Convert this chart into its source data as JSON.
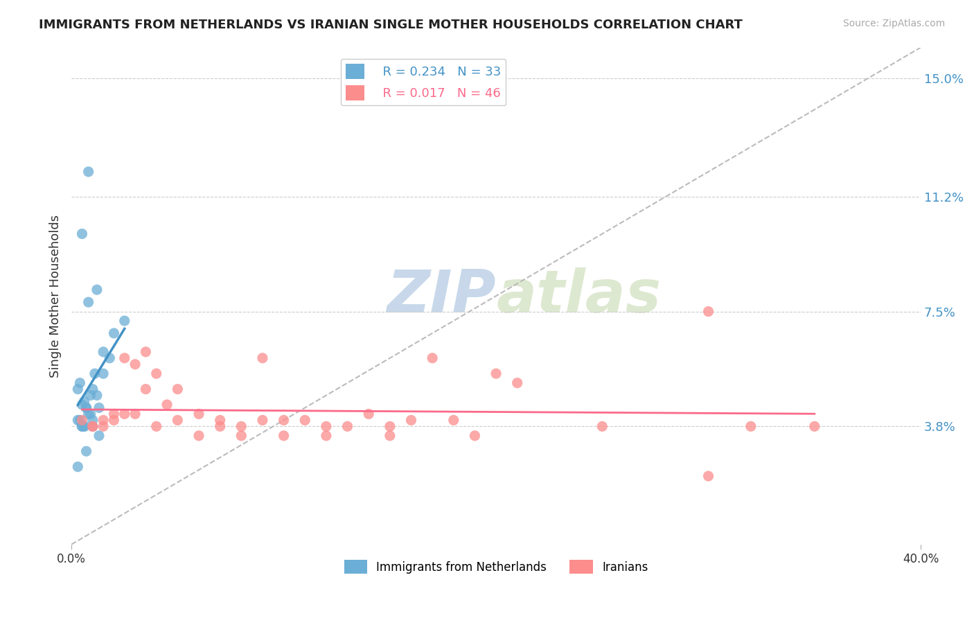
{
  "title": "IMMIGRANTS FROM NETHERLANDS VS IRANIAN SINGLE MOTHER HOUSEHOLDS CORRELATION CHART",
  "source": "Source: ZipAtlas.com",
  "ylabel": "Single Mother Households",
  "xlabel": "",
  "xlim": [
    0.0,
    0.4
  ],
  "ylim": [
    0.0,
    0.16
  ],
  "x_tick_labels": [
    "0.0%",
    "40.0%"
  ],
  "y_tick_labels_right": [
    "3.8%",
    "7.5%",
    "11.2%",
    "15.0%"
  ],
  "y_tick_values_right": [
    0.038,
    0.075,
    0.112,
    0.15
  ],
  "watermark_zip": "ZIP",
  "watermark_atlas": "atlas",
  "legend_r1": "R = 0.234",
  "legend_n1": "N = 33",
  "legend_r2": "R = 0.017",
  "legend_n2": "N = 46",
  "color_netherlands": "#6baed6",
  "color_iranians": "#fc8d8d",
  "color_netherlands_line": "#4292c6",
  "color_iranians_line": "#fb6a8a",
  "color_diagonal": "#bbbbbb",
  "netherlands_x": [
    0.005,
    0.008,
    0.003,
    0.012,
    0.015,
    0.018,
    0.005,
    0.007,
    0.009,
    0.01,
    0.013,
    0.02,
    0.025,
    0.01,
    0.006,
    0.004,
    0.003,
    0.007,
    0.008,
    0.005,
    0.006,
    0.004,
    0.009,
    0.011,
    0.015,
    0.013,
    0.007,
    0.003,
    0.008,
    0.012,
    0.005,
    0.006,
    0.01
  ],
  "netherlands_y": [
    0.045,
    0.042,
    0.04,
    0.048,
    0.055,
    0.06,
    0.038,
    0.044,
    0.042,
    0.038,
    0.044,
    0.068,
    0.072,
    0.05,
    0.046,
    0.052,
    0.05,
    0.044,
    0.12,
    0.1,
    0.038,
    0.04,
    0.048,
    0.055,
    0.062,
    0.035,
    0.03,
    0.025,
    0.078,
    0.082,
    0.038,
    0.038,
    0.04
  ],
  "iranians_x": [
    0.005,
    0.01,
    0.015,
    0.02,
    0.025,
    0.03,
    0.035,
    0.04,
    0.045,
    0.05,
    0.06,
    0.07,
    0.08,
    0.09,
    0.1,
    0.11,
    0.12,
    0.13,
    0.14,
    0.15,
    0.16,
    0.17,
    0.18,
    0.19,
    0.2,
    0.21,
    0.25,
    0.3,
    0.01,
    0.015,
    0.02,
    0.025,
    0.03,
    0.035,
    0.04,
    0.05,
    0.06,
    0.07,
    0.08,
    0.09,
    0.1,
    0.12,
    0.15,
    0.3,
    0.32,
    0.35
  ],
  "iranians_y": [
    0.04,
    0.038,
    0.038,
    0.042,
    0.06,
    0.058,
    0.062,
    0.055,
    0.045,
    0.05,
    0.035,
    0.04,
    0.038,
    0.06,
    0.035,
    0.04,
    0.035,
    0.038,
    0.042,
    0.035,
    0.04,
    0.06,
    0.04,
    0.035,
    0.055,
    0.052,
    0.038,
    0.022,
    0.038,
    0.04,
    0.04,
    0.042,
    0.042,
    0.05,
    0.038,
    0.04,
    0.042,
    0.038,
    0.035,
    0.04,
    0.04,
    0.038,
    0.038,
    0.075,
    0.038,
    0.038
  ]
}
